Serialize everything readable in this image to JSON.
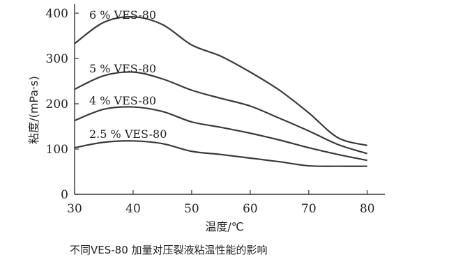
{
  "chart_data": {
    "type": "line",
    "xlabel": "温度/℃",
    "ylabel": "粘度/(mPa·s)",
    "caption": "不同VES-80 加量对压裂液粘温性能的影响",
    "xlim": [
      30,
      83
    ],
    "ylim": [
      0,
      420
    ],
    "xticks": [
      30,
      40,
      50,
      60,
      70,
      80
    ],
    "yticks": [
      0,
      100,
      200,
      300,
      400
    ],
    "grid": false,
    "series": [
      {
        "name": "6 % VES-80",
        "x": [
          30,
          35,
          40,
          45,
          50,
          55,
          60,
          65,
          70,
          75,
          80
        ],
        "y": [
          333,
          380,
          392,
          375,
          330,
          305,
          270,
          230,
          180,
          125,
          108
        ]
      },
      {
        "name": "5 % VES-80",
        "x": [
          30,
          35,
          40,
          45,
          50,
          55,
          60,
          65,
          70,
          75,
          80
        ],
        "y": [
          232,
          262,
          270,
          255,
          230,
          212,
          195,
          168,
          140,
          110,
          90
        ]
      },
      {
        "name": "4 % VES-80",
        "x": [
          30,
          35,
          40,
          45,
          50,
          55,
          60,
          65,
          70,
          75,
          80
        ],
        "y": [
          163,
          188,
          193,
          183,
          160,
          148,
          135,
          120,
          103,
          88,
          75
        ]
      },
      {
        "name": "2.5 % VES-80",
        "x": [
          30,
          35,
          40,
          45,
          50,
          55,
          60,
          65,
          70,
          75,
          80
        ],
        "y": [
          103,
          115,
          118,
          112,
          95,
          88,
          80,
          72,
          63,
          62,
          62
        ]
      }
    ]
  }
}
